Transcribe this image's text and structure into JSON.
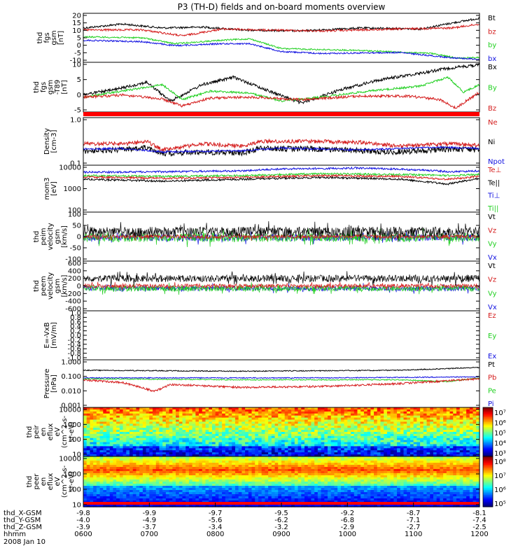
{
  "title": "P3 (TH-D) fields and on-board moments overview",
  "colors": {
    "black": "#000000",
    "red": "#d41c1c",
    "green": "#22d022",
    "blue": "#1010e0",
    "bar": "#ff0000"
  },
  "chart_data": [
    {
      "type": "line",
      "ylabel": [
        "thd",
        "fgs",
        "gsm",
        "[nT]"
      ],
      "yticks": [
        "20",
        "15",
        "10",
        "5",
        "0",
        "-5",
        "-10"
      ],
      "ylim": [
        -10,
        20
      ],
      "legend": [
        {
          "name": "Bt",
          "color": "black"
        },
        {
          "name": "bz",
          "color": "red"
        },
        {
          "name": "by",
          "color": "green"
        },
        {
          "name": "bx",
          "color": "blue"
        }
      ]
    },
    {
      "type": "line",
      "ylabel": [
        "thd",
        "fgs",
        "gsm",
        "-T89",
        "[nT]"
      ],
      "yticks": [
        "10",
        "5",
        "0",
        "-5"
      ],
      "ylim": [
        -7,
        10
      ],
      "legend": [
        {
          "name": "Bx",
          "color": "black"
        },
        {
          "name": "By",
          "color": "green"
        },
        {
          "name": "Bz",
          "color": "red"
        }
      ]
    },
    {
      "type": "line",
      "scale": "log",
      "ylabel": [
        "Density",
        "[cm-3]"
      ],
      "yticks": [
        "1.0",
        "0.1"
      ],
      "legend": [
        {
          "name": "Ne",
          "color": "red"
        },
        {
          "name": "Ni",
          "color": "black"
        },
        {
          "name": "Npot",
          "color": "blue"
        }
      ]
    },
    {
      "type": "line",
      "scale": "log",
      "ylabel": [
        "mom3",
        "[eV]"
      ],
      "yticks": [
        "10000",
        "1000",
        "100"
      ],
      "legend": [
        {
          "name": "Te⊥",
          "color": "red"
        },
        {
          "name": "Te||",
          "color": "black"
        },
        {
          "name": "Ti⊥",
          "color": "blue"
        },
        {
          "name": "Ti||",
          "color": "green"
        }
      ]
    },
    {
      "type": "line",
      "ylabel": [
        "thd",
        "peim",
        "velocity",
        "gsm",
        "[km/s]"
      ],
      "yticks": [
        "100",
        "50",
        "0",
        "-50",
        "-100"
      ],
      "ylim": [
        -100,
        100
      ],
      "legend": [
        {
          "name": "Vt",
          "color": "black"
        },
        {
          "name": "Vz",
          "color": "red"
        },
        {
          "name": "Vy",
          "color": "green"
        },
        {
          "name": "Vx",
          "color": "blue"
        }
      ]
    },
    {
      "type": "line",
      "ylabel": [
        "thd",
        "peem",
        "velocity",
        "gsm",
        "[km/s]"
      ],
      "yticks": [
        "600",
        "400",
        "200",
        "0",
        "-200",
        "-400",
        "-600"
      ],
      "ylim": [
        -600,
        600
      ],
      "legend": [
        {
          "name": "Vt",
          "color": "black"
        },
        {
          "name": "Vz",
          "color": "red"
        },
        {
          "name": "Vy",
          "color": "green"
        },
        {
          "name": "Vx",
          "color": "blue"
        }
      ]
    },
    {
      "type": "line",
      "ylabel": [
        "E=-VxB",
        "[mV/m]"
      ],
      "yticks": [
        "1.0",
        "0.8",
        "0.6",
        "0.4",
        "0.2",
        "0.0",
        "-0.2",
        "-0.4",
        "-0.6",
        "-0.8",
        "-1.0"
      ],
      "ylim": [
        -1,
        1
      ],
      "legend": [
        {
          "name": "Ez",
          "color": "red"
        },
        {
          "name": "Ey",
          "color": "green"
        },
        {
          "name": "Ex",
          "color": "blue"
        }
      ]
    },
    {
      "type": "line",
      "scale": "log",
      "ylabel": [
        "Pressure",
        "[nPa]"
      ],
      "yticks": [
        "1.000",
        "0.100",
        "0.010",
        "0.001"
      ],
      "legend": [
        {
          "name": "Pt",
          "color": "black"
        },
        {
          "name": "Pb",
          "color": "red"
        },
        {
          "name": "Pe",
          "color": "green"
        },
        {
          "name": "Pi",
          "color": "blue"
        }
      ]
    },
    {
      "type": "heatmap",
      "ylabel": [
        "thd",
        "peir",
        "en",
        "eflux",
        "eV",
        "(cm^2-s-",
        "sr-eV)"
      ],
      "yticks": [
        "10000",
        "1000",
        "100",
        "10"
      ],
      "colorbar": [
        "10⁷",
        "10⁶",
        "10⁵",
        "10⁴",
        "10³"
      ]
    },
    {
      "type": "heatmap",
      "ylabel": [
        "thd",
        "peer",
        "en",
        "eflux",
        "eV",
        "(cm^2-s-",
        "sr-eV)"
      ],
      "yticks": [
        "10000",
        "1000",
        "100",
        "10"
      ],
      "colorbar": [
        "10⁸",
        "10⁷",
        "10⁶",
        "10⁵"
      ]
    }
  ],
  "xaxis": {
    "rows": [
      {
        "label": "thd_X-GSM",
        "values": [
          "-9.8",
          "-9.9",
          "-9.7",
          "-9.5",
          "-9.2",
          "-8.7",
          "-8.1"
        ]
      },
      {
        "label": "thd_Y-GSM",
        "values": [
          "-4.0",
          "-4.9",
          "-5.6",
          "-6.2",
          "-6.8",
          "-7.1",
          "-7.4"
        ]
      },
      {
        "label": "thd_Z-GSM",
        "values": [
          "-3.9",
          "-3.7",
          "-3.4",
          "-3.2",
          "-2.9",
          "-2.7",
          "-2.5"
        ]
      },
      {
        "label": "hhmm",
        "values": [
          "0600",
          "0700",
          "0800",
          "0900",
          "1000",
          "1100",
          "1200"
        ]
      }
    ],
    "date": "2008 Jan 10"
  }
}
